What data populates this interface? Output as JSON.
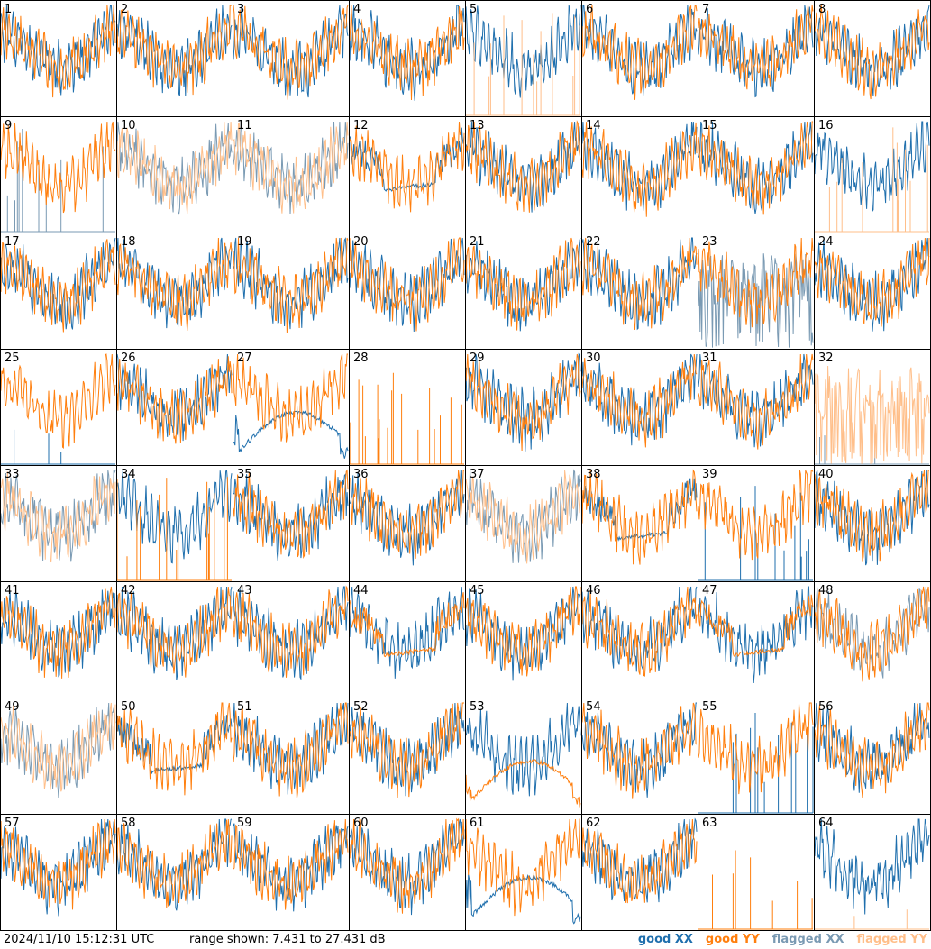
{
  "footer": {
    "timestamp": "2024/11/10 15:12:31 UTC",
    "range_text": "range shown: 7.431 to 27.431 dB",
    "legend": [
      {
        "quality": "good",
        "pol": "XX",
        "color": "#1f6fad",
        "text_color": "#1f6fad"
      },
      {
        "quality": "good",
        "pol": "YY",
        "color": "#ff7f0e",
        "text_color": "#ff7f0e"
      },
      {
        "quality": "flagged",
        "pol": "XX",
        "color": "#7a9ab3",
        "text_color": "#7a9ab3"
      },
      {
        "quality": "flagged",
        "pol": "YY",
        "color": "#ffbf8a",
        "text_color": "#ffbf8a"
      }
    ]
  },
  "chart_data": {
    "type": "line",
    "ylim": [
      7.431,
      27.431
    ],
    "yunit": "dB",
    "grid_cols": 8,
    "grid_rows": 8,
    "panels": [
      {
        "id": "1",
        "xx": "good",
        "yy": "good",
        "xx_style": "wave",
        "yy_style": "wave"
      },
      {
        "id": "2",
        "xx": "good",
        "yy": "good",
        "xx_style": "wave",
        "yy_style": "wave"
      },
      {
        "id": "3",
        "xx": "good",
        "yy": "good",
        "xx_style": "wave",
        "yy_style": "wave"
      },
      {
        "id": "4",
        "xx": "good",
        "yy": "good",
        "xx_style": "wave",
        "yy_style": "wave"
      },
      {
        "id": "5",
        "xx": "good",
        "yy": "flagged",
        "xx_style": "wave",
        "yy_style": "spikes"
      },
      {
        "id": "6",
        "xx": "good",
        "yy": "good",
        "xx_style": "wave",
        "yy_style": "wave"
      },
      {
        "id": "7",
        "xx": "good",
        "yy": "good",
        "xx_style": "wave",
        "yy_style": "wave"
      },
      {
        "id": "8",
        "xx": "good",
        "yy": "good",
        "xx_style": "wave",
        "yy_style": "wave"
      },
      {
        "id": "9",
        "xx": "flagged",
        "yy": "good",
        "xx_style": "spikes",
        "yy_style": "wave"
      },
      {
        "id": "10",
        "xx": "flagged",
        "yy": "flagged",
        "xx_style": "wave",
        "yy_style": "wave"
      },
      {
        "id": "11",
        "xx": "flagged",
        "yy": "flagged",
        "xx_style": "wave",
        "yy_style": "wave"
      },
      {
        "id": "12",
        "xx": "good",
        "yy": "good",
        "xx_style": "flatmid",
        "yy_style": "wave"
      },
      {
        "id": "13",
        "xx": "good",
        "yy": "good",
        "xx_style": "wave",
        "yy_style": "wave"
      },
      {
        "id": "14",
        "xx": "good",
        "yy": "good",
        "xx_style": "wave",
        "yy_style": "wave"
      },
      {
        "id": "15",
        "xx": "good",
        "yy": "good",
        "xx_style": "wave",
        "yy_style": "wave"
      },
      {
        "id": "16",
        "xx": "good",
        "yy": "flagged",
        "xx_style": "wave",
        "yy_style": "spikes"
      },
      {
        "id": "17",
        "xx": "good",
        "yy": "good",
        "xx_style": "wave",
        "yy_style": "wave"
      },
      {
        "id": "18",
        "xx": "good",
        "yy": "good",
        "xx_style": "wave",
        "yy_style": "wave"
      },
      {
        "id": "19",
        "xx": "good",
        "yy": "good",
        "xx_style": "wave",
        "yy_style": "wave"
      },
      {
        "id": "20",
        "xx": "good",
        "yy": "good",
        "xx_style": "wave",
        "yy_style": "wave"
      },
      {
        "id": "21",
        "xx": "good",
        "yy": "good",
        "xx_style": "wave",
        "yy_style": "wave"
      },
      {
        "id": "22",
        "xx": "good",
        "yy": "good",
        "xx_style": "wave",
        "yy_style": "wave"
      },
      {
        "id": "23",
        "xx": "flagged",
        "yy": "good",
        "xx_style": "noisy",
        "yy_style": "wave"
      },
      {
        "id": "24",
        "xx": "good",
        "yy": "good",
        "xx_style": "wave",
        "yy_style": "wave"
      },
      {
        "id": "25",
        "xx": "good",
        "yy": "good",
        "xx_style": "sparse",
        "yy_style": "wave"
      },
      {
        "id": "26",
        "xx": "good",
        "yy": "good",
        "xx_style": "wave",
        "yy_style": "wave"
      },
      {
        "id": "27",
        "xx": "good",
        "yy": "good",
        "xx_style": "arch",
        "yy_style": "wave"
      },
      {
        "id": "28",
        "xx": "good",
        "yy": "good",
        "xx_style": "none",
        "yy_style": "spikes"
      },
      {
        "id": "29",
        "xx": "good",
        "yy": "good",
        "xx_style": "wave",
        "yy_style": "wave"
      },
      {
        "id": "30",
        "xx": "good",
        "yy": "good",
        "xx_style": "wave",
        "yy_style": "wave"
      },
      {
        "id": "31",
        "xx": "good",
        "yy": "good",
        "xx_style": "wave",
        "yy_style": "wave"
      },
      {
        "id": "32",
        "xx": "flagged",
        "yy": "flagged",
        "xx_style": "sparse",
        "yy_style": "noisy"
      },
      {
        "id": "33",
        "xx": "flagged",
        "yy": "flagged",
        "xx_style": "wave",
        "yy_style": "wave"
      },
      {
        "id": "34",
        "xx": "good",
        "yy": "good",
        "xx_style": "wave",
        "yy_style": "spikes"
      },
      {
        "id": "35",
        "xx": "good",
        "yy": "good",
        "xx_style": "wave",
        "yy_style": "wave"
      },
      {
        "id": "36",
        "xx": "good",
        "yy": "good",
        "xx_style": "wave",
        "yy_style": "wave"
      },
      {
        "id": "37",
        "xx": "flagged",
        "yy": "flagged",
        "xx_style": "wave",
        "yy_style": "wave"
      },
      {
        "id": "38",
        "xx": "good",
        "yy": "good",
        "xx_style": "flatmid",
        "yy_style": "wave"
      },
      {
        "id": "39",
        "xx": "good",
        "yy": "good",
        "xx_style": "spikes",
        "yy_style": "wave"
      },
      {
        "id": "40",
        "xx": "good",
        "yy": "good",
        "xx_style": "wave",
        "yy_style": "wave"
      },
      {
        "id": "41",
        "xx": "good",
        "yy": "good",
        "xx_style": "wave",
        "yy_style": "wave"
      },
      {
        "id": "42",
        "xx": "good",
        "yy": "good",
        "xx_style": "wave",
        "yy_style": "wave"
      },
      {
        "id": "43",
        "xx": "good",
        "yy": "good",
        "xx_style": "wave",
        "yy_style": "wave"
      },
      {
        "id": "44",
        "xx": "good",
        "yy": "good",
        "xx_style": "wave",
        "yy_style": "flatmid"
      },
      {
        "id": "45",
        "xx": "good",
        "yy": "good",
        "xx_style": "wave",
        "yy_style": "wave"
      },
      {
        "id": "46",
        "xx": "good",
        "yy": "good",
        "xx_style": "wave",
        "yy_style": "wave"
      },
      {
        "id": "47",
        "xx": "good",
        "yy": "good",
        "xx_style": "wave",
        "yy_style": "flatmid"
      },
      {
        "id": "48",
        "xx": "flagged",
        "yy": "good",
        "xx_style": "wave",
        "yy_style": "wave"
      },
      {
        "id": "49",
        "xx": "flagged",
        "yy": "flagged",
        "xx_style": "wave",
        "yy_style": "wave"
      },
      {
        "id": "50",
        "xx": "good",
        "yy": "good",
        "xx_style": "flatmid",
        "yy_style": "wave"
      },
      {
        "id": "51",
        "xx": "good",
        "yy": "good",
        "xx_style": "wave",
        "yy_style": "wave"
      },
      {
        "id": "52",
        "xx": "good",
        "yy": "good",
        "xx_style": "wave",
        "yy_style": "wave"
      },
      {
        "id": "53",
        "xx": "good",
        "yy": "good",
        "xx_style": "wave",
        "yy_style": "arch"
      },
      {
        "id": "54",
        "xx": "good",
        "yy": "good",
        "xx_style": "wave",
        "yy_style": "wave"
      },
      {
        "id": "55",
        "xx": "good",
        "yy": "good",
        "xx_style": "spikes",
        "yy_style": "wave"
      },
      {
        "id": "56",
        "xx": "good",
        "yy": "good",
        "xx_style": "wave",
        "yy_style": "wave"
      },
      {
        "id": "57",
        "xx": "good",
        "yy": "good",
        "xx_style": "wave",
        "yy_style": "wave"
      },
      {
        "id": "58",
        "xx": "good",
        "yy": "good",
        "xx_style": "wave",
        "yy_style": "wave"
      },
      {
        "id": "59",
        "xx": "good",
        "yy": "good",
        "xx_style": "wave",
        "yy_style": "wave"
      },
      {
        "id": "60",
        "xx": "good",
        "yy": "good",
        "xx_style": "wave",
        "yy_style": "wave"
      },
      {
        "id": "61",
        "xx": "good",
        "yy": "good",
        "xx_style": "arch",
        "yy_style": "wave"
      },
      {
        "id": "62",
        "xx": "good",
        "yy": "good",
        "xx_style": "wave",
        "yy_style": "wave"
      },
      {
        "id": "63",
        "xx": "good",
        "yy": "good",
        "xx_style": "none",
        "yy_style": "spikes"
      },
      {
        "id": "64",
        "xx": "good",
        "yy": "flagged",
        "xx_style": "wave",
        "yy_style": "sparse"
      }
    ]
  }
}
